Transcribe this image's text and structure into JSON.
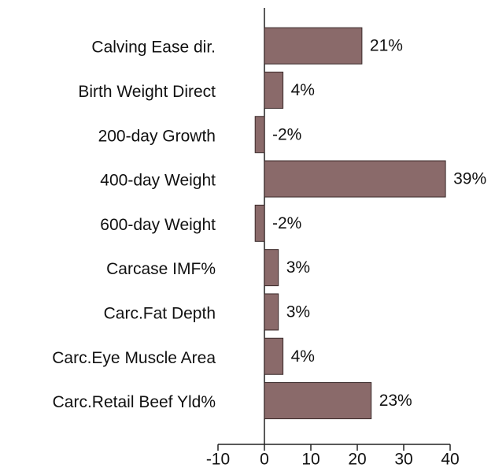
{
  "chart_data": {
    "type": "bar",
    "orientation": "horizontal",
    "categories": [
      "Calving Ease dir.",
      "Birth Weight Direct",
      "200-day Growth",
      "400-day Weight",
      "600-day Weight",
      "Carcase IMF%",
      "Carc.Fat Depth",
      "Carc.Eye Muscle Area",
      "Carc.Retail Beef Yld%"
    ],
    "values": [
      21,
      4,
      -2,
      39,
      -2,
      3,
      3,
      4,
      23
    ],
    "value_labels": [
      "21%",
      "4%",
      "-2%",
      "39%",
      "-2%",
      "3%",
      "3%",
      "4%",
      "23%"
    ],
    "color": "#8a6a6a",
    "xlim": [
      -10,
      40
    ],
    "xticks": [
      -10,
      0,
      10,
      20,
      30,
      40
    ]
  }
}
